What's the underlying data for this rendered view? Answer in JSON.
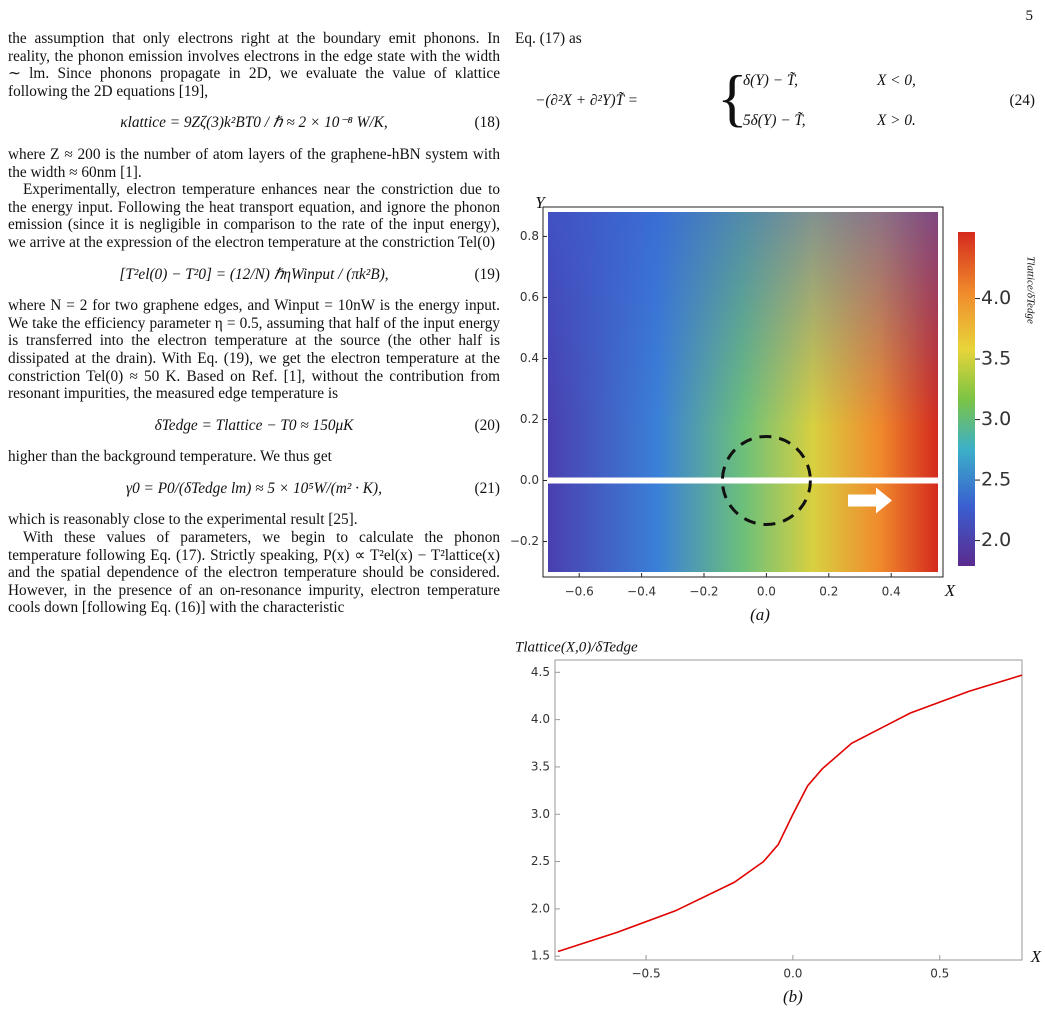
{
  "page_number": "5",
  "left_column": [
    "the assumption that only electrons right at the boundary emit phonons. In reality, the phonon emission involves electrons in the edge state with the width ∼ lm. Since phonons propagate in 2D, we evaluate the value of κlattice following the 2D equations [19],",
    "where Z ≈ 200 is the number of atom layers of the graphene-hBN system with the width ≈ 60nm [1].",
    "Experimentally, electron temperature enhances near the constriction due to the energy input. Following the heat transport equation, and ignore the phonon emission (since it is negligible in comparison to the rate of the input energy), we arrive at the expression of the electron temperature at the constriction Tel(0)",
    "where N = 2 for two graphene edges, and Winput = 10nW is the energy input. We take the efficiency parameter η = 0.5, assuming that half of the input energy is transferred into the electron temperature at the source (the other half is dissipated at the drain). With Eq. (19), we get the electron temperature at the constriction Tel(0) ≈ 50 K. Based on Ref. [1], without the contribution from resonant impurities, the measured edge temperature is",
    "higher than the background temperature. We thus get",
    "which is reasonably close to the experimental result [25].",
    "With these values of parameters, we begin to calculate the phonon temperature following Eq. (17). Strictly speaking, P(x) ∝ T²el(x) − T²lattice(x) and the spatial dependence of the electron temperature should be considered. However, in the presence of an on-resonance impurity, electron temperature cools down [following Eq. (16)] with the characteristic"
  ],
  "right_column": [
    "Eq. (17) as"
  ],
  "equations": [
    {
      "body": "κlattice = 9Zζ(3)k²BT0 / ℏ ≈ 2 × 10⁻⁸ W/K,",
      "number": "(18)"
    },
    {
      "body": "[T²el(0) − T²0] = (12/N) ℏηWinput / (πk²B),",
      "number": "(19)"
    },
    {
      "body": "δTedge = Tlattice − T0 ≈ 150μK",
      "number": "(20)"
    },
    {
      "body": "γ0 = P0/(δTedge lm) ≈ 5 × 10⁵W/(m² · K),",
      "number": "(21)"
    },
    {
      "lhs": "−(∂²X + ∂²Y)T̃ =",
      "case1": "δ(Y) − T̃,",
      "cond1": "X < 0,",
      "case2": "5δ(Y) − T̃,",
      "cond2": "X > 0.",
      "number": "(24)"
    }
  ],
  "figure_a": {
    "x_label": "X",
    "y_label": "Y",
    "caption": "(a)",
    "colorbar_label": "Tlattice/δTedge",
    "xlim": [
      -0.7,
      0.55
    ],
    "ylim": [
      -0.3,
      0.88
    ],
    "colorbar_lim": [
      1.79,
      4.55
    ],
    "xticks": [
      {
        "value": -0.6,
        "label": "−0.6"
      },
      {
        "value": -0.4,
        "label": "−0.4"
      },
      {
        "value": -0.2,
        "label": "−0.2"
      },
      {
        "value": 0,
        "label": "0.0"
      },
      0.2,
      0.4
    ],
    "yticks": [
      {
        "value": -0.2,
        "label": "−0.2"
      },
      {
        "value": 0,
        "label": "0.0"
      },
      0.2,
      0.4,
      0.6,
      0.8
    ],
    "colorbar_ticks": [
      {
        "value": 2,
        "label": "2.0"
      },
      2.5,
      {
        "value": 3,
        "label": "3.0"
      },
      3.5,
      {
        "value": 4,
        "label": "4.0"
      }
    ]
  },
  "figure_b": {
    "type": "line",
    "title": "Tlattice(X,0)/δTedge",
    "x_label": "X",
    "caption": "(b)",
    "color": "#e00000",
    "xlim": [
      -0.81,
      0.78
    ],
    "ylim": [
      1.46,
      4.63
    ],
    "xticks": [
      {
        "value": -0.5,
        "label": "−0.5"
      },
      {
        "value": 0,
        "label": "0.0"
      },
      0.5
    ],
    "yticks": [
      1.5,
      {
        "value": 2,
        "label": "2.0"
      },
      2.5,
      {
        "value": 3,
        "label": "3.0"
      },
      3.5,
      {
        "value": 4,
        "label": "4.0"
      },
      4.5
    ],
    "x": [
      -0.8,
      -0.6,
      -0.4,
      -0.2,
      -0.1,
      -0.05,
      0,
      0.05,
      0.1,
      0.2,
      0.4,
      0.6,
      0.78
    ],
    "values": [
      1.55,
      1.75,
      1.98,
      2.28,
      2.5,
      2.68,
      3.0,
      3.3,
      3.48,
      3.75,
      4.07,
      4.3,
      4.47
    ]
  }
}
